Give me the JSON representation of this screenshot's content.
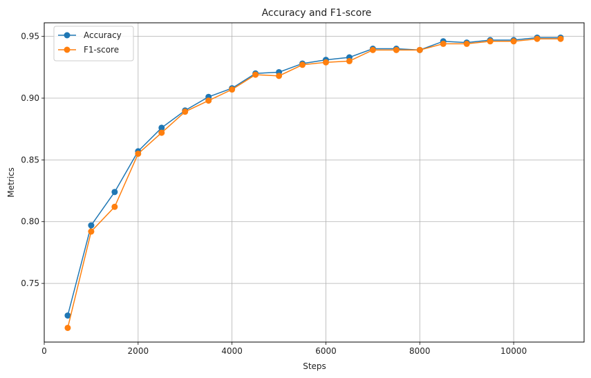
{
  "chart_data": {
    "type": "line",
    "title": "Accuracy and F1-score",
    "xlabel": "Steps",
    "ylabel": "Metrics",
    "xlim": [
      0,
      11500
    ],
    "ylim": [
      0.7025,
      0.961
    ],
    "x_ticks": [
      0,
      2000,
      4000,
      6000,
      8000,
      10000
    ],
    "y_ticks": [
      0.75,
      0.8,
      0.85,
      0.9,
      0.95
    ],
    "x_tick_labels": [
      "0",
      "2000",
      "4000",
      "6000",
      "8000",
      "10000"
    ],
    "y_tick_labels": [
      "0.75",
      "0.80",
      "0.85",
      "0.90",
      "0.95"
    ],
    "grid": true,
    "legend_position": "top-left",
    "x": [
      500,
      1000,
      1500,
      2000,
      2500,
      3000,
      3500,
      4000,
      4500,
      5000,
      5500,
      6000,
      6500,
      7000,
      7500,
      8000,
      8500,
      9000,
      9500,
      10000,
      10500,
      11000
    ],
    "series": [
      {
        "name": "Accuracy",
        "color": "#1f77b4",
        "values": [
          0.724,
          0.797,
          0.824,
          0.857,
          0.876,
          0.89,
          0.901,
          0.908,
          0.92,
          0.921,
          0.928,
          0.931,
          0.933,
          0.94,
          0.94,
          0.939,
          0.946,
          0.945,
          0.947,
          0.947,
          0.949,
          0.949
        ]
      },
      {
        "name": "F1-score",
        "color": "#ff7f0e",
        "values": [
          0.714,
          0.792,
          0.812,
          0.855,
          0.872,
          0.889,
          0.898,
          0.907,
          0.919,
          0.918,
          0.927,
          0.929,
          0.93,
          0.939,
          0.939,
          0.939,
          0.944,
          0.944,
          0.946,
          0.946,
          0.948,
          0.948
        ]
      }
    ]
  }
}
